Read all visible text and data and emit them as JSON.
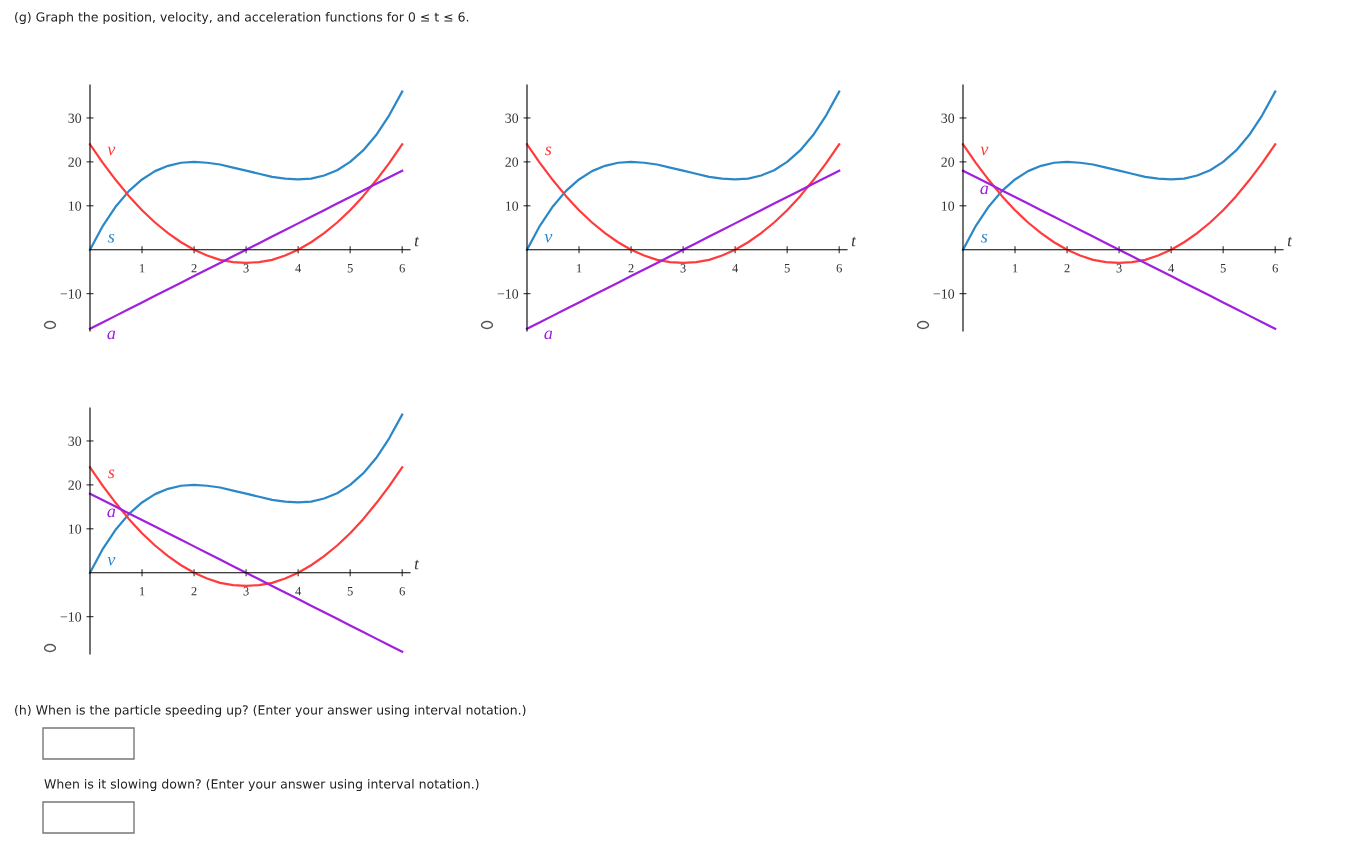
{
  "chart_data": [
    {
      "type": "line",
      "xlabel": "t",
      "xlim": [
        0,
        6.15
      ],
      "ylim": [
        -18.5,
        37.5
      ],
      "xticks": [
        1,
        2,
        3,
        4,
        5,
        6
      ],
      "yticks": [
        -10,
        10,
        20,
        30
      ],
      "grid": false,
      "legend": false,
      "x": [
        0,
        0.25,
        0.5,
        0.75,
        1,
        1.25,
        1.5,
        1.75,
        2,
        2.25,
        2.5,
        2.75,
        3,
        3.25,
        3.5,
        3.75,
        4,
        4.25,
        4.5,
        4.75,
        5,
        5.25,
        5.5,
        5.75,
        6
      ],
      "series": [
        {
          "name": "s",
          "color": "#2b88c8",
          "values": [
            0,
            5.5,
            9.9,
            13.4,
            16,
            17.9,
            19.1,
            19.8,
            20,
            19.8,
            19.4,
            18.7,
            18,
            17.3,
            16.6,
            16.2,
            16,
            16.2,
            16.9,
            18.1,
            20,
            22.6,
            26.1,
            30.6,
            36
          ]
        },
        {
          "name": "v",
          "color": "#ff3b3b",
          "values": [
            24,
            19.7,
            15.8,
            12.2,
            9,
            6.2,
            3.8,
            1.7,
            0,
            -1.3,
            -2.3,
            -2.8,
            -3,
            -2.8,
            -2.3,
            -1.3,
            0,
            1.7,
            3.8,
            6.2,
            9,
            12.2,
            15.8,
            19.7,
            24
          ]
        },
        {
          "name": "a",
          "color": "#a020e0",
          "values": [
            -18,
            -16.5,
            -15,
            -13.5,
            -12,
            -10.5,
            -9,
            -7.5,
            -6,
            -4.5,
            -3,
            -1.5,
            0,
            1.5,
            3,
            4.5,
            6,
            7.5,
            9,
            10.5,
            12,
            13.5,
            15,
            16.5,
            18
          ]
        }
      ],
      "annotations": [
        "(g) Graph the position, velocity, and acceleration functions for 0 ≤ t ≤ 6."
      ]
    },
    {
      "type": "line",
      "xlabel": "t",
      "xlim": [
        0,
        6.15
      ],
      "ylim": [
        -18.5,
        37.5
      ],
      "xticks": [
        1,
        2,
        3,
        4,
        5,
        6
      ],
      "yticks": [
        -10,
        10,
        20,
        30
      ],
      "grid": false,
      "legend": false,
      "x": [
        0,
        0.25,
        0.5,
        0.75,
        1,
        1.25,
        1.5,
        1.75,
        2,
        2.25,
        2.5,
        2.75,
        3,
        3.25,
        3.5,
        3.75,
        4,
        4.25,
        4.5,
        4.75,
        5,
        5.25,
        5.5,
        5.75,
        6
      ],
      "series": [
        {
          "name": "v",
          "color": "#2b88c8",
          "values": [
            0,
            5.5,
            9.9,
            13.4,
            16,
            17.9,
            19.1,
            19.8,
            20,
            19.8,
            19.4,
            18.7,
            18,
            17.3,
            16.6,
            16.2,
            16,
            16.2,
            16.9,
            18.1,
            20,
            22.6,
            26.1,
            30.6,
            36
          ]
        },
        {
          "name": "s",
          "color": "#ff3b3b",
          "values": [
            24,
            19.7,
            15.8,
            12.2,
            9,
            6.2,
            3.8,
            1.7,
            0,
            -1.3,
            -2.3,
            -2.8,
            -3,
            -2.8,
            -2.3,
            -1.3,
            0,
            1.7,
            3.8,
            6.2,
            9,
            12.2,
            15.8,
            19.7,
            24
          ]
        },
        {
          "name": "a",
          "color": "#a020e0",
          "values": [
            -18,
            -16.5,
            -15,
            -13.5,
            -12,
            -10.5,
            -9,
            -7.5,
            -6,
            -4.5,
            -3,
            -1.5,
            0,
            1.5,
            3,
            4.5,
            6,
            7.5,
            9,
            10.5,
            12,
            13.5,
            15,
            16.5,
            18
          ]
        }
      ]
    },
    {
      "type": "line",
      "xlabel": "t",
      "xlim": [
        0,
        6.15
      ],
      "ylim": [
        -18.5,
        37.5
      ],
      "xticks": [
        1,
        2,
        3,
        4,
        5,
        6
      ],
      "yticks": [
        -10,
        10,
        20,
        30
      ],
      "grid": false,
      "legend": false,
      "x": [
        0,
        0.25,
        0.5,
        0.75,
        1,
        1.25,
        1.5,
        1.75,
        2,
        2.25,
        2.5,
        2.75,
        3,
        3.25,
        3.5,
        3.75,
        4,
        4.25,
        4.5,
        4.75,
        5,
        5.25,
        5.5,
        5.75,
        6
      ],
      "series": [
        {
          "name": "s",
          "color": "#2b88c8",
          "values": [
            0,
            5.5,
            9.9,
            13.4,
            16,
            17.9,
            19.1,
            19.8,
            20,
            19.8,
            19.4,
            18.7,
            18,
            17.3,
            16.6,
            16.2,
            16,
            16.2,
            16.9,
            18.1,
            20,
            22.6,
            26.1,
            30.6,
            36
          ]
        },
        {
          "name": "v",
          "color": "#ff3b3b",
          "values": [
            24,
            19.7,
            15.8,
            12.2,
            9,
            6.2,
            3.8,
            1.7,
            0,
            -1.3,
            -2.3,
            -2.8,
            -3,
            -2.8,
            -2.3,
            -1.3,
            0,
            1.7,
            3.8,
            6.2,
            9,
            12.2,
            15.8,
            19.7,
            24
          ]
        },
        {
          "name": "a",
          "color": "#a020e0",
          "values": [
            18,
            16.5,
            15,
            13.5,
            12,
            10.5,
            9,
            7.5,
            6,
            4.5,
            3,
            1.5,
            0,
            -1.5,
            -3,
            -4.5,
            -6,
            -7.5,
            -9,
            -10.5,
            -12,
            -13.5,
            -15,
            -16.5,
            -18
          ]
        }
      ]
    },
    {
      "type": "line",
      "xlabel": "t",
      "xlim": [
        0,
        6.15
      ],
      "ylim": [
        -18.5,
        37.5
      ],
      "xticks": [
        1,
        2,
        3,
        4,
        5,
        6
      ],
      "yticks": [
        -10,
        10,
        20,
        30
      ],
      "grid": false,
      "legend": false,
      "x": [
        0,
        0.25,
        0.5,
        0.75,
        1,
        1.25,
        1.5,
        1.75,
        2,
        2.25,
        2.5,
        2.75,
        3,
        3.25,
        3.5,
        3.75,
        4,
        4.25,
        4.5,
        4.75,
        5,
        5.25,
        5.5,
        5.75,
        6
      ],
      "series": [
        {
          "name": "v",
          "color": "#2b88c8",
          "values": [
            0,
            5.5,
            9.9,
            13.4,
            16,
            17.9,
            19.1,
            19.8,
            20,
            19.8,
            19.4,
            18.7,
            18,
            17.3,
            16.6,
            16.2,
            16,
            16.2,
            16.9,
            18.1,
            20,
            22.6,
            26.1,
            30.6,
            36
          ]
        },
        {
          "name": "s",
          "color": "#ff3b3b",
          "values": [
            24,
            19.7,
            15.8,
            12.2,
            9,
            6.2,
            3.8,
            1.7,
            0,
            -1.3,
            -2.3,
            -2.8,
            -3,
            -2.8,
            -2.3,
            -1.3,
            0,
            1.7,
            3.8,
            6.2,
            9,
            12.2,
            15.8,
            19.7,
            24
          ]
        },
        {
          "name": "a",
          "color": "#a020e0",
          "values": [
            18,
            16.5,
            15,
            13.5,
            12,
            10.5,
            9,
            7.5,
            6,
            4.5,
            3,
            1.5,
            0,
            -1.5,
            -3,
            -4.5,
            -6,
            -7.5,
            -9,
            -10.5,
            -12,
            -13.5,
            -15,
            -16.5,
            -18
          ]
        }
      ],
      "annotations": [
        "(h) When is the particle speeding up? (Enter your answer using interval notation.)",
        "When is it slowing down? (Enter your answer using interval notation.)"
      ]
    }
  ]
}
